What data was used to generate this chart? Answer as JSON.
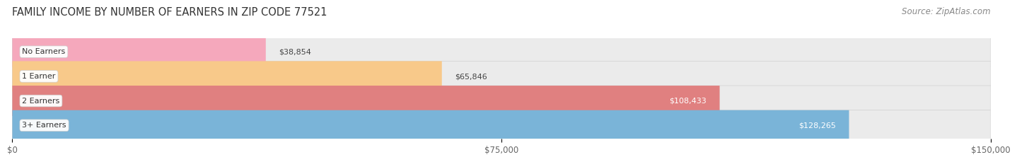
{
  "title": "FAMILY INCOME BY NUMBER OF EARNERS IN ZIP CODE 77521",
  "source": "Source: ZipAtlas.com",
  "categories": [
    "No Earners",
    "1 Earner",
    "2 Earners",
    "3+ Earners"
  ],
  "values": [
    38854,
    65846,
    108433,
    128265
  ],
  "bar_colors": [
    "#f5a8bc",
    "#f8c98a",
    "#e08080",
    "#7ab4d8"
  ],
  "bar_bg_color": "#ebebeb",
  "value_labels": [
    "$38,854",
    "$65,846",
    "$108,433",
    "$128,265"
  ],
  "label_in_bar": [
    false,
    false,
    true,
    true
  ],
  "xmax": 150000,
  "xticks": [
    0,
    75000,
    150000
  ],
  "xticklabels": [
    "$0",
    "$75,000",
    "$150,000"
  ],
  "background_color": "#ffffff",
  "title_fontsize": 10.5,
  "source_fontsize": 8.5,
  "tick_fontsize": 8.5,
  "cat_fontsize": 8,
  "value_fontsize": 8
}
